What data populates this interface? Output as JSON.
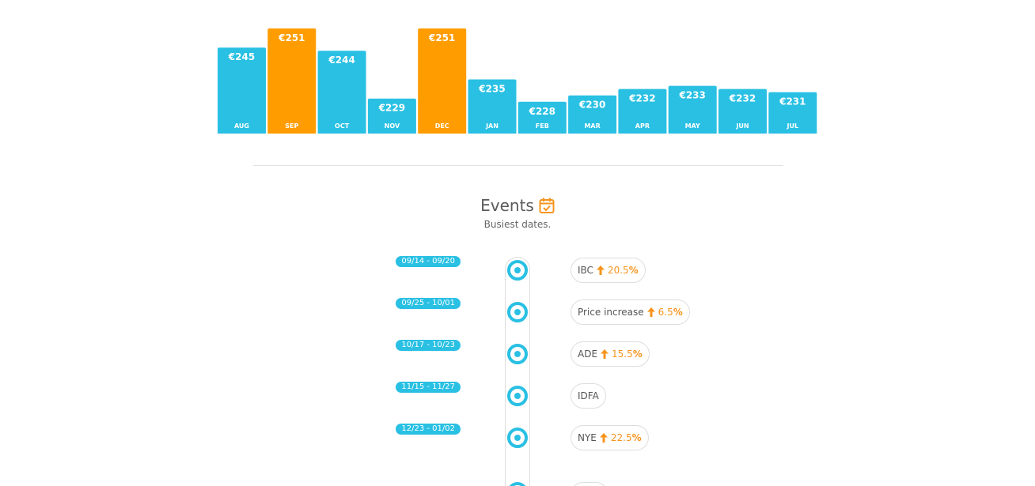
{
  "colors": {
    "default_bar": "#29c0e3",
    "highlight_bar": "#ff9c00",
    "accent_orange": "#f7941d",
    "badge_blue": "#29c0e3"
  },
  "chart_data": {
    "type": "bar",
    "categories": [
      "AUG",
      "SEP",
      "OCT",
      "NOV",
      "DEC",
      "JAN",
      "FEB",
      "MAR",
      "APR",
      "MAY",
      "JUN",
      "JUL"
    ],
    "values": [
      245,
      251,
      244,
      229,
      251,
      235,
      228,
      230,
      232,
      233,
      232,
      231
    ],
    "value_labels": [
      "€245",
      "€251",
      "€244",
      "€229",
      "€251",
      "€235",
      "€228",
      "€230",
      "€232",
      "€233",
      "€232",
      "€231"
    ],
    "highlighted": [
      "SEP",
      "DEC"
    ],
    "grid": false,
    "legend": "none"
  },
  "events": {
    "title": "Events",
    "subtitle": "Busiest dates.",
    "icon": "calendar-check-icon",
    "items": [
      {
        "date_range": "09/14 - 09/20",
        "name": "IBC",
        "change": "20.5",
        "percent": "%"
      },
      {
        "date_range": "09/25 - 10/01",
        "name": "Price increase",
        "change": "6.5",
        "percent": "%"
      },
      {
        "date_range": "10/17 - 10/23",
        "name": "ADE",
        "change": "15.5",
        "percent": "%"
      },
      {
        "date_range": "11/15 - 11/27",
        "name": "IDFA",
        "change": "",
        "percent": ""
      },
      {
        "date_range": "12/23 - 01/02",
        "name": "NYE",
        "change": "22.5",
        "percent": "%"
      }
    ]
  }
}
